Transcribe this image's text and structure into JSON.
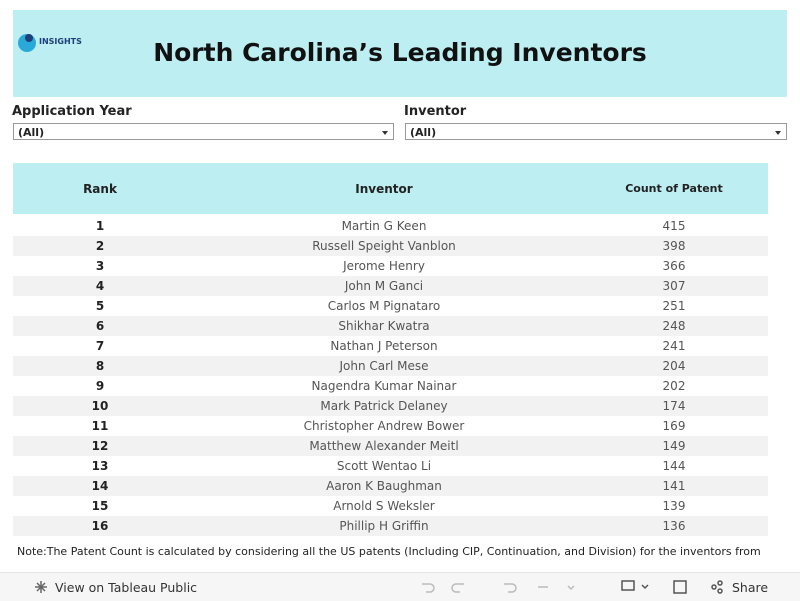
{
  "header": {
    "logo": "INSIGHTS",
    "title": "North Carolina’s Leading Inventors"
  },
  "filters": [
    {
      "label": "Application Year",
      "value": "(All)"
    },
    {
      "label": "Inventor",
      "value": "(All)"
    }
  ],
  "table": {
    "columns": [
      "Rank",
      "Inventor",
      "Count of Patent"
    ],
    "rows": [
      [
        1,
        "Martin G Keen",
        415
      ],
      [
        2,
        "Russell Speight Vanblon",
        398
      ],
      [
        3,
        "Jerome Henry",
        366
      ],
      [
        4,
        "John M Ganci",
        307
      ],
      [
        5,
        "Carlos M Pignataro",
        251
      ],
      [
        6,
        "Shikhar Kwatra",
        248
      ],
      [
        7,
        "Nathan J Peterson",
        241
      ],
      [
        8,
        "John Carl Mese",
        204
      ],
      [
        9,
        "Nagendra Kumar Nainar",
        202
      ],
      [
        10,
        "Mark Patrick Delaney",
        174
      ],
      [
        11,
        "Christopher Andrew Bower",
        169
      ],
      [
        12,
        "Matthew Alexander Meitl",
        149
      ],
      [
        13,
        "Scott Wentao Li",
        144
      ],
      [
        14,
        "Aaron K Baughman",
        141
      ],
      [
        15,
        "Arnold S Weksler",
        139
      ],
      [
        16,
        "Phillip H Griffin",
        136
      ]
    ]
  },
  "note": "Note:The Patent Count is calculated by considering all the US patents (Including CIP, Continuation, and Division) for the inventors from",
  "toolbar": {
    "view": "View on Tableau Public",
    "share": "Share"
  }
}
